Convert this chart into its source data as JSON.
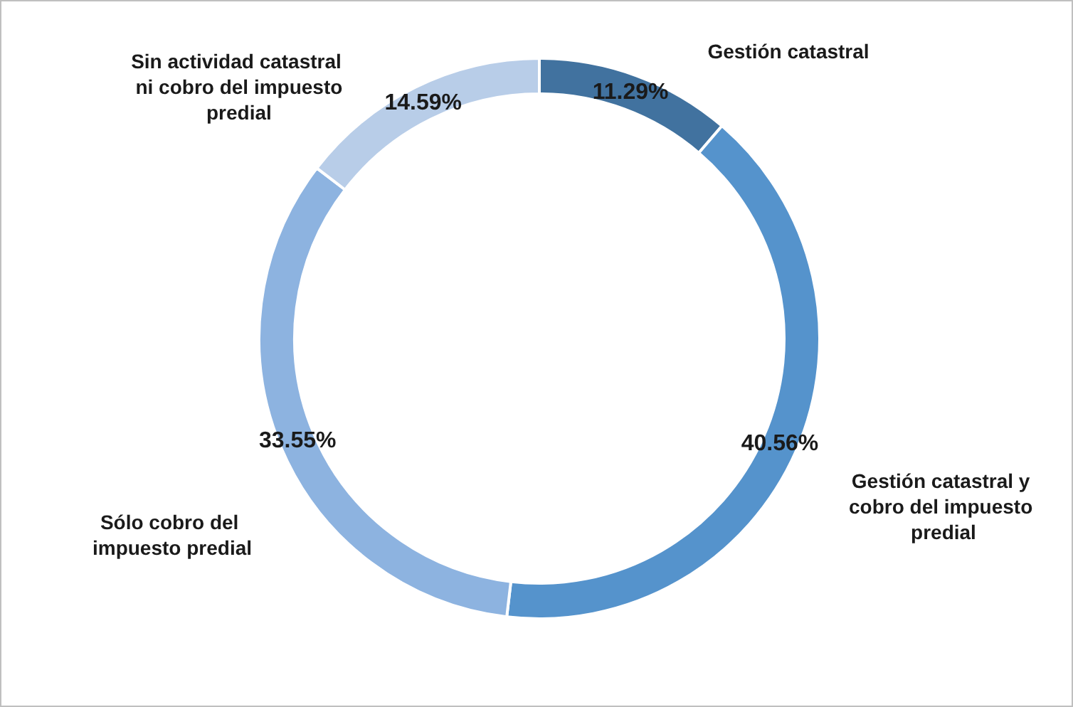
{
  "chart_data": {
    "type": "donut",
    "categories": [
      "Gestión catastral",
      "Gestión catastral y cobro del impuesto predial",
      "Sólo cobro del impuesto predial",
      "Sin actividad catastral ni cobro del impuesto predial"
    ],
    "values": [
      11.29,
      40.56,
      33.55,
      14.59
    ],
    "value_labels": [
      "11.29%",
      "40.56%",
      "33.55%",
      "14.59%"
    ],
    "colors": [
      "#41729f",
      "#5593cc",
      "#8db3e0",
      "#b8cde8"
    ],
    "legend": false
  }
}
